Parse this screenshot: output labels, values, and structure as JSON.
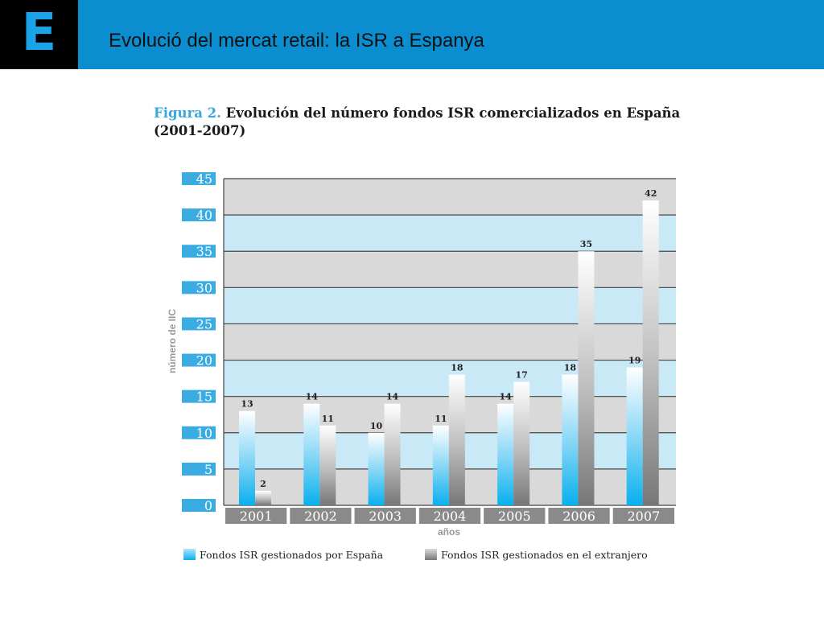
{
  "header": {
    "logo_letter": "E",
    "title": "Evolució del mercat retail: la ISR a Espanya"
  },
  "figure": {
    "label": "Figura 2.",
    "caption": "Evolución del número fondos ISR comercializados en España (2001-2007)"
  },
  "colors": {
    "header_bg": "#0b8ed0",
    "spain_series": "#1ab2ec",
    "foreign_series": "#8e8e8e",
    "band_light": "#c9e9f7",
    "band_gray": "#d9d9d9",
    "label_tab": "#3aace2",
    "year_tab": "#8a8a8a"
  },
  "chart_data": {
    "type": "bar",
    "categories": [
      "2001",
      "2002",
      "2003",
      "2004",
      "2005",
      "2006",
      "2007"
    ],
    "series": [
      {
        "name": "Fondos ISR gestionados por España",
        "values": [
          13,
          14,
          10,
          11,
          14,
          18,
          19
        ]
      },
      {
        "name": "Fondos ISR gestionados en el extranjero",
        "values": [
          2,
          11,
          14,
          18,
          17,
          35,
          42
        ]
      }
    ],
    "yticks": [
      "0",
      "5",
      "10",
      "15",
      "20",
      "25",
      "30",
      "35",
      "40",
      "45"
    ],
    "ylim": [
      0,
      45
    ],
    "xlabel": "años",
    "ylabel": "número de IIC",
    "grid": true,
    "legend_position": "bottom"
  }
}
